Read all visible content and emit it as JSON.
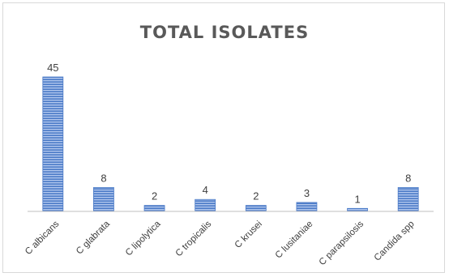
{
  "chart_data": {
    "type": "bar",
    "title": "TOTAL ISOLATES",
    "categories": [
      "C albicans",
      "C glabrata",
      "C lipolytica",
      "C tropicalis",
      "C krusei",
      "C lusitaniae",
      "C parapsilosis",
      "Candida spp"
    ],
    "values": [
      45,
      8,
      2,
      4,
      2,
      3,
      1,
      8
    ],
    "ylim": [
      0,
      45
    ],
    "grid": false,
    "legend": "none",
    "bar_color": "#4a7ac7",
    "stripe_color": "#a9c1ea"
  }
}
